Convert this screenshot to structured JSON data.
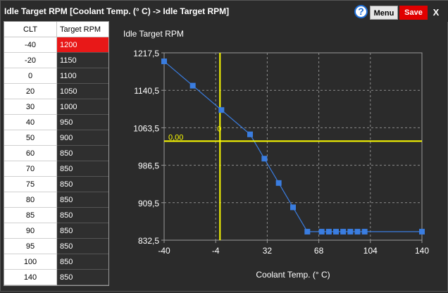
{
  "window": {
    "title": "Idle Target RPM [Coolant Temp. (° C) -> Idle Target RPM]",
    "help_label": "?",
    "menu_label": "Menu",
    "save_label": "Save",
    "close_label": "X"
  },
  "table": {
    "headers": [
      "CLT",
      "Target RPM"
    ],
    "rows": [
      [
        "-40",
        "1200"
      ],
      [
        "-20",
        "1150"
      ],
      [
        "0",
        "1100"
      ],
      [
        "20",
        "1050"
      ],
      [
        "30",
        "1000"
      ],
      [
        "40",
        "950"
      ],
      [
        "50",
        "900"
      ],
      [
        "60",
        "850"
      ],
      [
        "70",
        "850"
      ],
      [
        "75",
        "850"
      ],
      [
        "80",
        "850"
      ],
      [
        "85",
        "850"
      ],
      [
        "90",
        "850"
      ],
      [
        "95",
        "850"
      ],
      [
        "100",
        "850"
      ],
      [
        "140",
        "850"
      ]
    ],
    "selected_row": 0
  },
  "colors": {
    "selected_cell": "#e81818",
    "series": "#3a7de0",
    "crosshair": "#ffff00",
    "save_button": "#e00000"
  },
  "chart_data": {
    "type": "line",
    "title": "Idle Target RPM",
    "xlabel": "Coolant Temp. (° C)",
    "ylabel": "",
    "x": [
      -40,
      -20,
      0,
      20,
      30,
      40,
      50,
      60,
      70,
      75,
      80,
      85,
      90,
      95,
      100,
      140
    ],
    "series": [
      {
        "values": [
          1200,
          1150,
          1100,
          1050,
          1000,
          950,
          900,
          850,
          850,
          850,
          850,
          850,
          850,
          850,
          850,
          850
        ]
      }
    ],
    "xlim": [
      -40,
      140
    ],
    "ylim": [
      832.5,
      1217.5
    ],
    "x_ticks": [
      "-40",
      "-4",
      "32",
      "68",
      "104",
      "140"
    ],
    "y_ticks": [
      "1217,5",
      "1140,5",
      "1063,5",
      "986,5",
      "909,5",
      "832,5"
    ],
    "crosshair": {
      "x": -1,
      "y": 1036,
      "x_label": "0",
      "y_label": "0,00"
    },
    "grid": true
  }
}
